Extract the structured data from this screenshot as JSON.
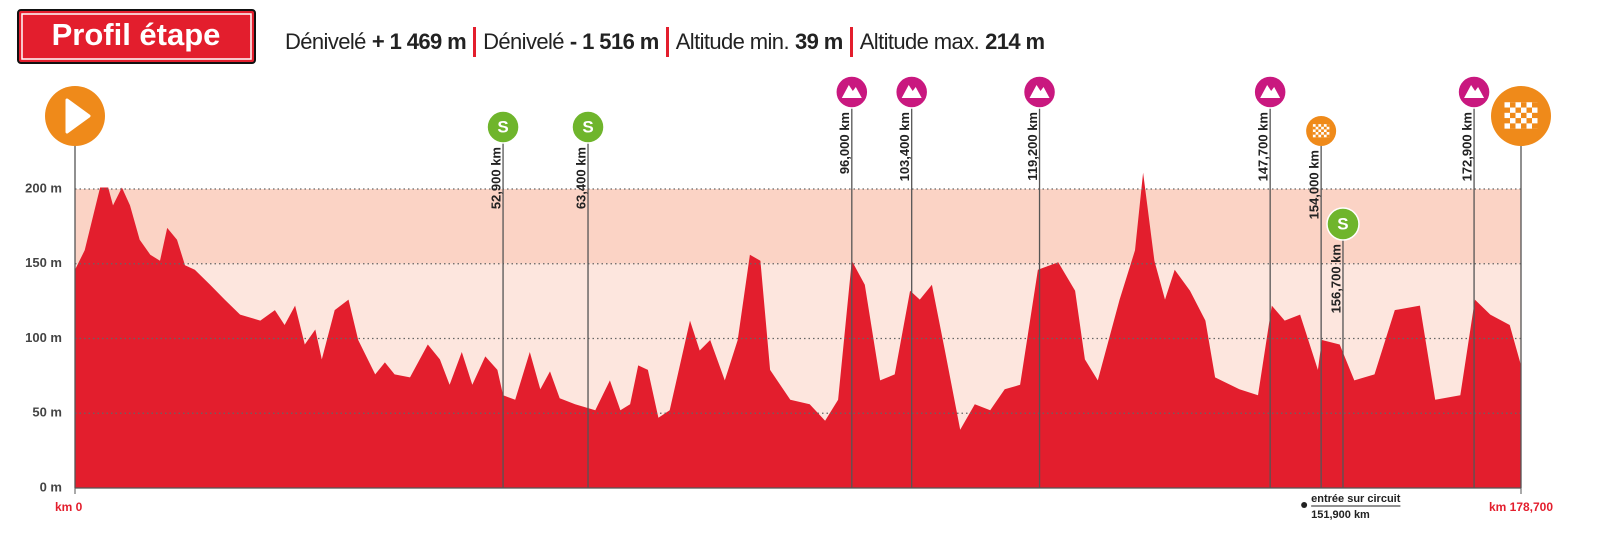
{
  "chart_data": {
    "type": "area",
    "title": "Profil étape",
    "stats": [
      {
        "label": "Dénivelé",
        "value": "+ 1 469 m"
      },
      {
        "label": "Dénivelé",
        "value": "- 1 516 m"
      },
      {
        "label": "Altitude min.",
        "value": "39 m"
      },
      {
        "label": "Altitude max.",
        "value": "214 m"
      }
    ],
    "color": "#e31e2d",
    "x": [
      0,
      1.2,
      3.1,
      4.1,
      4.7,
      5.8,
      6.8,
      8.0,
      9.3,
      10.5,
      11.4,
      12.6,
      13.6,
      14.8,
      16.7,
      18.5,
      20.4,
      22.9,
      24.7,
      25.9,
      27.2,
      28.4,
      29.7,
      30.5,
      32.1,
      33.8,
      35.0,
      37.1,
      38.3,
      39.5,
      41.4,
      43.6,
      45.1,
      46.3,
      47.8,
      49.1,
      50.7,
      52.2,
      52.9,
      54.4,
      56.2,
      57.5,
      58.7,
      59.9,
      61.8,
      64.3,
      66.1,
      67.4,
      68.6,
      69.6,
      70.8,
      72.1,
      73.5,
      76.0,
      77.2,
      78.5,
      80.3,
      81.9,
      83.4,
      84.7,
      85.9,
      88.4,
      90.8,
      92.7,
      94.3,
      96.0,
      97.6,
      99.5,
      101.3,
      103.2,
      104.4,
      105.9,
      107.5,
      109.4,
      111.2,
      113.1,
      114.9,
      116.8,
      119.0,
      121.5,
      123.6,
      124.8,
      126.4,
      129.1,
      131.0,
      132.0,
      133.4,
      134.7,
      135.9,
      137.8,
      139.7,
      140.9,
      143.9,
      146.2,
      147.9,
      149.5,
      151.4,
      153.6,
      154.1,
      156.3,
      158.1,
      160.6,
      163.1,
      166.2,
      168.1,
      171.2,
      173.0,
      174.9,
      177.3,
      178.7
    ],
    "values": [
      146,
      159,
      201,
      201,
      189,
      201,
      189,
      166,
      156,
      152,
      174,
      166,
      149,
      146,
      136,
      126,
      116,
      112,
      119,
      109,
      122,
      96,
      106,
      86,
      119,
      126,
      99,
      76,
      84,
      76,
      74,
      96,
      86,
      69,
      91,
      69,
      88,
      79,
      62,
      59,
      91,
      66,
      78,
      60,
      56,
      52,
      72,
      52,
      56,
      82,
      79,
      47,
      52,
      112,
      92,
      99,
      72,
      99,
      156,
      152,
      79,
      59,
      56,
      45,
      59,
      152,
      136,
      72,
      76,
      132,
      126,
      136,
      92,
      39,
      56,
      52,
      66,
      69,
      146,
      151,
      132,
      86,
      72,
      126,
      159,
      211,
      152,
      126,
      146,
      132,
      112,
      74,
      66,
      62,
      122,
      112,
      116,
      79,
      99,
      96,
      72,
      76,
      119,
      122,
      59,
      62,
      126,
      116,
      109,
      82
    ],
    "xlim": [
      0,
      178.7
    ],
    "ylim": [
      0,
      200
    ],
    "xticks": [
      {
        "value": 0,
        "label": "km 0"
      },
      {
        "value": 178.7,
        "label": "km 178,700"
      }
    ],
    "yticks": [
      {
        "value": 0,
        "label": "0 m"
      },
      {
        "value": 50,
        "label": "50 m"
      },
      {
        "value": 100,
        "label": "100 m"
      },
      {
        "value": 150,
        "label": "150 m"
      },
      {
        "value": 200,
        "label": "200 m"
      }
    ],
    "markers": [
      {
        "km": 0,
        "icon": "start"
      },
      {
        "km": 52.9,
        "label": "52,900 km",
        "icon": "sprint"
      },
      {
        "km": 63.4,
        "label": "63,400 km",
        "icon": "sprint"
      },
      {
        "km": 96.0,
        "label": "96,000 km",
        "icon": "climb"
      },
      {
        "km": 103.4,
        "label": "103,400 km",
        "icon": "climb"
      },
      {
        "km": 119.2,
        "label": "119,200 km",
        "icon": "climb"
      },
      {
        "km": 147.7,
        "label": "147,700 km",
        "icon": "climb"
      },
      {
        "km": 154.0,
        "label": "154,000 km",
        "icon": "circuit"
      },
      {
        "km": 156.7,
        "label": "156,700 km",
        "icon": "sprint"
      },
      {
        "km": 172.9,
        "label": "172,900 km",
        "icon": "climb"
      },
      {
        "km": 178.7,
        "icon": "finish"
      }
    ],
    "note": {
      "km": 151.9,
      "text": "entrée sur circuit",
      "km_label": "151,900 km"
    }
  }
}
